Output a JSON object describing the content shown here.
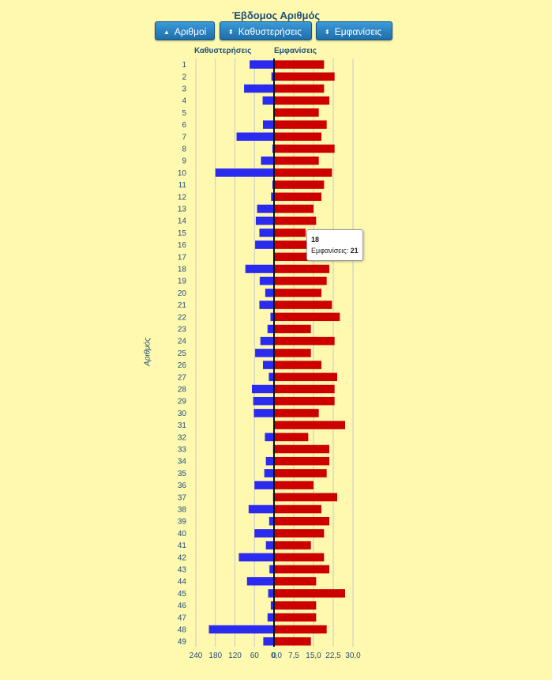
{
  "chart_data": {
    "type": "bar",
    "title": "Έβδομος Αριθμός",
    "ylabel": "Αριθμός",
    "categories": [
      "1",
      "2",
      "3",
      "4",
      "5",
      "6",
      "7",
      "8",
      "9",
      "10",
      "11",
      "12",
      "13",
      "14",
      "15",
      "16",
      "17",
      "18",
      "19",
      "20",
      "21",
      "22",
      "23",
      "24",
      "25",
      "26",
      "27",
      "28",
      "29",
      "30",
      "31",
      "32",
      "33",
      "34",
      "35",
      "36",
      "37",
      "38",
      "39",
      "40",
      "41",
      "42",
      "43",
      "44",
      "45",
      "46",
      "47",
      "48",
      "49"
    ],
    "series": [
      {
        "name": "Καθυστερήσεις",
        "color": "#2b2bf0",
        "xlim": [
          0,
          240
        ],
        "ticks": [
          "240",
          "180",
          "120",
          "60",
          "0"
        ],
        "values": [
          75,
          8,
          92,
          35,
          0,
          34,
          115,
          5,
          40,
          180,
          5,
          9,
          52,
          56,
          45,
          58,
          0,
          88,
          44,
          27,
          45,
          11,
          20,
          42,
          58,
          34,
          16,
          68,
          64,
          62,
          0,
          28,
          3,
          25,
          30,
          60,
          3,
          78,
          15,
          60,
          25,
          108,
          14,
          83,
          18,
          10,
          20,
          200,
          33
        ]
      },
      {
        "name": "Εμφανίσεις",
        "color": "#cc0000",
        "xlim": [
          0,
          30
        ],
        "ticks": [
          "0,0",
          "7,5",
          "15,0",
          "22,5",
          "30,0"
        ],
        "values": [
          19,
          23,
          19,
          21,
          17,
          20,
          18,
          23,
          17,
          22,
          19,
          18,
          15,
          16,
          12,
          18,
          27,
          21,
          20,
          18,
          22,
          25,
          14,
          23,
          14,
          18,
          24,
          23,
          23,
          17,
          27,
          13,
          21,
          21,
          20,
          15,
          24,
          18,
          21,
          19,
          14,
          19,
          21,
          16,
          27,
          16,
          16,
          20,
          14
        ]
      }
    ]
  },
  "buttons": {
    "numbers": "Αριθμοί",
    "delays": "Καθυστερήσεις",
    "appearances": "Εμφανίσεις"
  },
  "tooltip": {
    "category": "18",
    "label": "Εμφανίσεις:",
    "value": "21"
  }
}
